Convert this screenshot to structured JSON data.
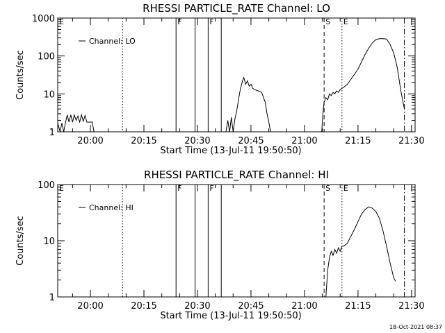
{
  "chart_data": [
    {
      "type": "line",
      "title": "RHESSI PARTICLE_RATE Channel: LO",
      "xlabel": "Start Time (13-Jul-11 19:50:50)",
      "ylabel": "Counts/sec",
      "yscale": "log",
      "xlim": [
        "19:50:50",
        "21:31:00"
      ],
      "ylim": [
        1,
        1000
      ],
      "xticks": [
        "20:00",
        "20:15",
        "20:30",
        "20:45",
        "21:00",
        "21:15",
        "21:30"
      ],
      "yticks": [
        "1",
        "10",
        "100",
        "1000"
      ],
      "legend": {
        "label": "Channel: LO",
        "placement": "top-left"
      },
      "grid": false,
      "markers": [
        {
          "label": "E",
          "time": "19:50:50",
          "style": "solid"
        },
        {
          "label": "",
          "time": "20:09:00",
          "style": "dotted"
        },
        {
          "label": "F",
          "time": "20:24:00",
          "style": "solid"
        },
        {
          "label": "",
          "time": "20:29:20",
          "style": "solid"
        },
        {
          "label": "F",
          "time": "20:33:00",
          "style": "solid"
        },
        {
          "label": "",
          "time": "20:36:40",
          "style": "solid"
        },
        {
          "label": "S",
          "time": "21:05:30",
          "style": "dashed"
        },
        {
          "label": "E",
          "time": "21:10:30",
          "style": "dotted"
        },
        {
          "label": "",
          "time": "21:28:00",
          "style": "dashdot"
        }
      ],
      "series": [
        {
          "segments": [
            {
              "x": [
                "19:50:50",
                "19:51:30",
                "19:52:00",
                "19:52:30",
                "19:53:00",
                "19:53:30",
                "19:54:00",
                "19:54:30",
                "19:55:00",
                "19:55:30",
                "19:56:00",
                "19:56:30",
                "19:57:00",
                "19:57:30",
                "19:58:00",
                "19:58:30",
                "19:59:00",
                "19:59:30",
                "20:00:00",
                "20:00:30",
                "20:01:00"
              ],
              "y": [
                1.7,
                1,
                1.7,
                1,
                1.7,
                2.8,
                1.8,
                2.8,
                1.8,
                2.8,
                2.0,
                2.6,
                1.8,
                2.8,
                1.9,
                2.7,
                1.8,
                1.8,
                1.8,
                1.8,
                1
              ]
            },
            {
              "x": [
                "20:38:00",
                "20:38:30",
                "20:39:00",
                "20:39:30",
                "20:40:00",
                "20:40:30",
                "20:41:00",
                "20:41:30",
                "20:42:00",
                "20:42:30",
                "20:43:00",
                "20:43:30",
                "20:44:00",
                "20:44:30",
                "20:45:00",
                "20:45:30",
                "20:46:00",
                "20:47:00",
                "20:48:00",
                "20:48:30",
                "20:49:00",
                "20:49:30",
                "20:50:00",
                "20:50:30"
              ],
              "y": [
                1,
                2,
                1,
                2.4,
                1,
                2.2,
                3.5,
                7,
                13,
                20,
                27,
                18,
                22,
                16,
                18,
                14,
                13,
                12,
                11,
                8,
                6,
                3,
                1.8,
                1
              ]
            },
            {
              "x": [
                "21:04:50",
                "21:05:10",
                "21:05:30",
                "21:06:00",
                "21:06:30",
                "21:07:00",
                "21:07:30",
                "21:08:00",
                "21:08:30",
                "21:09:00",
                "21:09:30",
                "21:10:00",
                "21:11:00",
                "21:12:00",
                "21:13:00",
                "21:14:00",
                "21:15:00",
                "21:16:00",
                "21:17:00",
                "21:18:00",
                "21:19:00",
                "21:20:00",
                "21:21:00",
                "21:22:00",
                "21:23:00",
                "21:24:00",
                "21:25:00",
                "21:26:00",
                "21:27:00",
                "21:28:00"
              ],
              "y": [
                1,
                3,
                6,
                8,
                7,
                10,
                9,
                11,
                10,
                12,
                11,
                13,
                15,
                18,
                24,
                33,
                45,
                70,
                110,
                160,
                220,
                270,
                285,
                285,
                280,
                200,
                120,
                50,
                12,
                4
              ]
            }
          ]
        }
      ]
    },
    {
      "type": "line",
      "title": "RHESSI PARTICLE_RATE Channel: HI",
      "xlabel": "Start Time (13-Jul-11 19:50:50)",
      "ylabel": "Counts/sec",
      "yscale": "log",
      "xlim": [
        "19:50:50",
        "21:31:00"
      ],
      "ylim": [
        1,
        100
      ],
      "xticks": [
        "20:00",
        "20:15",
        "20:30",
        "20:45",
        "21:00",
        "21:15",
        "21:30"
      ],
      "yticks": [
        "1",
        "10",
        "100"
      ],
      "legend": {
        "label": "Channel: HI",
        "placement": "top-left"
      },
      "grid": false,
      "markers": [
        {
          "label": "E",
          "time": "19:50:50",
          "style": "solid"
        },
        {
          "label": "",
          "time": "20:09:00",
          "style": "dotted"
        },
        {
          "label": "F",
          "time": "20:24:00",
          "style": "solid"
        },
        {
          "label": "",
          "time": "20:29:20",
          "style": "solid"
        },
        {
          "label": "F",
          "time": "20:33:00",
          "style": "solid"
        },
        {
          "label": "",
          "time": "20:36:40",
          "style": "solid"
        },
        {
          "label": "S",
          "time": "21:05:30",
          "style": "dashed"
        },
        {
          "label": "E",
          "time": "21:10:30",
          "style": "dotted"
        },
        {
          "label": "",
          "time": "21:28:00",
          "style": "dashdot"
        }
      ],
      "series": [
        {
          "segments": [
            {
              "x": [
                "21:06:00",
                "21:06:30",
                "21:07:00",
                "21:07:30",
                "21:08:00",
                "21:08:30",
                "21:09:00",
                "21:09:30",
                "21:10:00",
                "21:10:30",
                "21:11:00",
                "21:12:00",
                "21:13:00",
                "21:14:00",
                "21:15:00",
                "21:16:00",
                "21:17:00",
                "21:18:00",
                "21:19:00",
                "21:20:00",
                "21:21:00",
                "21:22:00",
                "21:23:00",
                "21:24:00",
                "21:25:00",
                "21:25:30"
              ],
              "y": [
                1,
                3,
                5,
                6.5,
                5.5,
                7,
                6,
                7.5,
                6.5,
                8,
                8,
                9,
                12,
                16,
                22,
                30,
                36,
                40,
                38,
                33,
                25,
                15,
                8,
                4,
                2.2,
                1.9
              ]
            }
          ]
        }
      ]
    }
  ],
  "footer": {
    "timestamp": "18-Oct-2021 08:37"
  }
}
